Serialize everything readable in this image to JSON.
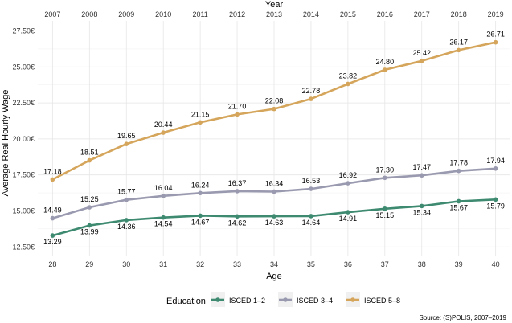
{
  "chart_data": {
    "type": "line",
    "x": [
      28,
      29,
      30,
      31,
      32,
      33,
      34,
      35,
      36,
      37,
      38,
      39,
      40
    ],
    "x_top": [
      "2007",
      "2008",
      "2009",
      "2010",
      "2011",
      "2012",
      "2013",
      "2014",
      "2015",
      "2016",
      "2017",
      "2018",
      "2019"
    ],
    "xlabel": "Age",
    "xlabel_top": "Year",
    "ylabel": "Average Real Hourly Wage",
    "ylim": [
      11.9,
      28.2
    ],
    "yticks": [
      12.5,
      15.0,
      17.5,
      20.0,
      22.5,
      25.0,
      27.5
    ],
    "ytick_labels": [
      "12.50€",
      "15.00€",
      "17.50€",
      "20.00€",
      "22.50€",
      "25.00€",
      "27.50€"
    ],
    "grid": true,
    "legend_title": "Education",
    "legend_position": "bottom",
    "caption": "Source: (S)POLIS, 2007–2019",
    "series": [
      {
        "name": "ISCED 1–2",
        "color": "#3d8a70",
        "values": [
          13.29,
          13.99,
          14.36,
          14.54,
          14.67,
          14.62,
          14.63,
          14.64,
          14.91,
          15.15,
          15.34,
          15.67,
          15.79
        ],
        "labels": [
          "13.29",
          "13.99",
          "14.36",
          "14.54",
          "14.67",
          "14.62",
          "14.63",
          "14.64",
          "14.91",
          "15.15",
          "15.34",
          "15.67",
          "15.79"
        ]
      },
      {
        "name": "ISCED 3–4",
        "color": "#9999b0",
        "values": [
          14.49,
          15.25,
          15.77,
          16.04,
          16.24,
          16.37,
          16.34,
          16.53,
          16.92,
          17.3,
          17.47,
          17.78,
          17.94
        ],
        "labels": [
          "14.49",
          "15.25",
          "15.77",
          "16.04",
          "16.24",
          "16.37",
          "16.34",
          "16.53",
          "16.92",
          "17.30",
          "17.47",
          "17.78",
          "17.94"
        ]
      },
      {
        "name": "ISCED 5–8",
        "color": "#d4a55a",
        "values": [
          17.18,
          18.51,
          19.65,
          20.44,
          21.15,
          21.7,
          22.08,
          22.78,
          23.82,
          24.8,
          25.42,
          26.17,
          26.71
        ],
        "labels": [
          "17.18",
          "18.51",
          "19.65",
          "20.44",
          "21.15",
          "21.70",
          "22.08",
          "22.78",
          "23.82",
          "24.80",
          "25.42",
          "26.17",
          "26.71"
        ]
      }
    ]
  }
}
